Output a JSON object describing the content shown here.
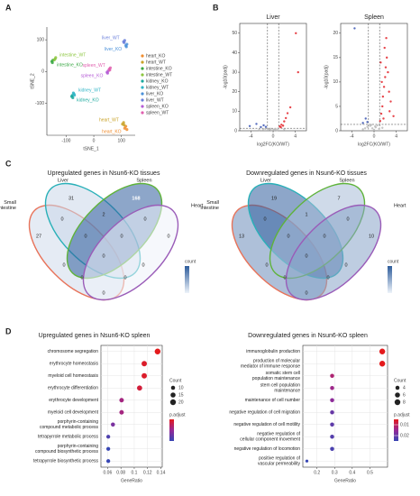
{
  "panel_labels": [
    "A",
    "B",
    "C",
    "D"
  ],
  "chart_data": [
    {
      "type": "scatter",
      "xlabel": "tSNE_1",
      "ylabel": "tSNE_2",
      "xlim": [
        -170,
        150
      ],
      "ylim": [
        -200,
        140
      ],
      "xticks": [
        -100,
        0,
        100
      ],
      "yticks": [
        -100,
        0,
        100
      ],
      "legend": "right",
      "series": [
        {
          "name": "heart_KO",
          "color": "#f08c2e",
          "x": [
            112,
            116,
            120
          ],
          "y": [
            -178,
            -172,
            -182
          ]
        },
        {
          "name": "heart_WT",
          "color": "#c9a227",
          "x": [
            104,
            108,
            110
          ],
          "y": [
            -165,
            -160,
            -168
          ]
        },
        {
          "name": "intestine_KO",
          "color": "#3aa845",
          "x": [
            -152,
            -148,
            -150
          ],
          "y": [
            32,
            36,
            28
          ]
        },
        {
          "name": "intestine_WT",
          "color": "#8cc63f",
          "x": [
            -140,
            -138,
            -143
          ],
          "y": [
            40,
            44,
            37
          ]
        },
        {
          "name": "kidney_KO",
          "color": "#19a99d",
          "x": [
            -80,
            -76,
            -78
          ],
          "y": [
            -78,
            -82,
            -75
          ]
        },
        {
          "name": "kidney_WT",
          "color": "#2fb5c6",
          "x": [
            -72,
            -70,
            -74
          ],
          "y": [
            -70,
            -74,
            -67
          ]
        },
        {
          "name": "liver_KO",
          "color": "#4a90d9",
          "x": [
            116,
            120,
            118
          ],
          "y": [
            82,
            86,
            78
          ]
        },
        {
          "name": "liver_WT",
          "color": "#6a7fdb",
          "x": [
            108,
            112,
            110
          ],
          "y": [
            94,
            98,
            91
          ]
        },
        {
          "name": "spleen_KO",
          "color": "#b55cd6",
          "x": [
            48,
            52,
            50
          ],
          "y": [
            -2,
            2,
            -5
          ]
        },
        {
          "name": "spleen_WT",
          "color": "#e05fae",
          "x": [
            56,
            60,
            58
          ],
          "y": [
            8,
            12,
            5
          ]
        }
      ]
    },
    {
      "type": "scatter",
      "title": "Liver",
      "xlabel": "log2FC(KO/WT)",
      "ylabel": "-log10(padj)",
      "xlim": [
        -6,
        6
      ],
      "ylim": [
        0,
        55
      ],
      "xticks": [
        -4,
        0,
        4
      ],
      "yticks": [
        0,
        10,
        20,
        30,
        40,
        50
      ],
      "threshold_x": [
        -1,
        1
      ],
      "threshold_y": 1.3,
      "series": [
        {
          "color": "#bbbbbb",
          "x": [
            -2.5,
            -1.8,
            -0.9,
            -0.5,
            -0.2,
            0.1,
            0.4,
            0.7,
            0.9,
            -0.6,
            0.3,
            2.0,
            -1.4
          ],
          "y": [
            0.4,
            0.8,
            0.5,
            1.0,
            0.2,
            0.6,
            0.9,
            0.3,
            1.1,
            0.7,
            0.4,
            0.8,
            1.0
          ]
        },
        {
          "color": "#e3242b",
          "x": [
            1.2,
            1.5,
            1.8,
            2.0,
            2.3,
            2.6,
            3.1,
            1.4,
            4.5,
            4.1
          ],
          "y": [
            2.2,
            3.1,
            2.6,
            4.8,
            6.5,
            9.0,
            12.0,
            1.8,
            30,
            50
          ]
        },
        {
          "color": "#3a55b4",
          "x": [
            -1.3,
            -1.7,
            -2.2,
            -3.0,
            -4.2
          ],
          "y": [
            2.0,
            2.8,
            1.9,
            3.5,
            2.4
          ]
        }
      ]
    },
    {
      "type": "scatter",
      "title": "Spleen",
      "xlabel": "log2FC(KO/WT)",
      "ylabel": "-log10(padj)",
      "xlim": [
        -6,
        6
      ],
      "ylim": [
        0,
        22
      ],
      "xticks": [
        -4,
        0,
        4
      ],
      "yticks": [
        0,
        5,
        10,
        15,
        20
      ],
      "threshold_x": [
        -1,
        1
      ],
      "threshold_y": 1.3,
      "series": [
        {
          "color": "#bbbbbb",
          "x": [
            -2,
            -1.2,
            -0.7,
            -0.3,
            0,
            0.3,
            0.6,
            0.9,
            -0.5,
            0.2,
            1.5,
            -1.6
          ],
          "y": [
            0.3,
            0.8,
            1.0,
            0.5,
            0.2,
            0.7,
            1.1,
            0.4,
            1.2,
            0.9,
            0.6,
            0.5
          ]
        },
        {
          "color": "#e3242b",
          "x": [
            1.1,
            1.3,
            1.5,
            1.6,
            1.8,
            2.0,
            2.1,
            2.3,
            2.5,
            2.7,
            3.0,
            1.4,
            1.9,
            2.2,
            2.8,
            3.5,
            1.2,
            1.7
          ],
          "y": [
            2,
            3.5,
            5,
            7,
            9,
            11,
            13,
            15,
            12,
            8,
            6,
            10,
            17,
            19,
            4,
            3,
            14,
            2.5
          ]
        },
        {
          "color": "#3a55b4",
          "x": [
            -1.2,
            -1.5,
            -2.0,
            -3.5
          ],
          "y": [
            1.8,
            2.5,
            1.6,
            21
          ]
        }
      ]
    },
    {
      "type": "venn",
      "title": "Upregulated genes in Nsun6-KO tissues",
      "colorbar_title": "count",
      "sets": [
        {
          "name": "Small\nintestine",
          "color": "#e8735a"
        },
        {
          "name": "Liver",
          "color": "#29b0b8"
        },
        {
          "name": "Spleen",
          "color": "#5fb33a"
        },
        {
          "name": "Heart",
          "color": "#9a5cb8"
        }
      ],
      "values": [
        27,
        31,
        168,
        0,
        0,
        2,
        0,
        0,
        0,
        0,
        0,
        0,
        0,
        0,
        0
      ]
    },
    {
      "type": "venn",
      "title": "Downregulated genes in Nsun6-KO tissues",
      "colorbar_title": "count",
      "sets": [
        {
          "name": "Small\nintestine",
          "color": "#e8735a"
        },
        {
          "name": "Liver",
          "color": "#29b0b8"
        },
        {
          "name": "Spleen",
          "color": "#5fb33a"
        },
        {
          "name": "Heart",
          "color": "#9a5cb8"
        }
      ],
      "values": [
        13,
        19,
        7,
        10,
        0,
        1,
        0,
        0,
        0,
        0,
        0,
        0,
        0,
        0,
        0
      ]
    },
    {
      "type": "dot",
      "title": "Upregulated genes in Nsun6-KO spleen",
      "xlabel": "GeneRatio",
      "xlim": [
        0.05,
        0.142
      ],
      "xticks": [
        0.06,
        0.08,
        0.1,
        0.12,
        0.14
      ],
      "categories": [
        "chromosome segregation",
        "erythrocyte homeostasis",
        "myeloid cell homeostasis",
        "erythrocyte differentiation",
        "erythrocyte development",
        "myeloid cell development",
        "porphyrin-containing\ncompound metabolic process",
        "tetrapyrrole metabolic process",
        "porphyrin-containing\ncompound biosynthetic process",
        "tetrapyrrole biosynthetic process"
      ],
      "values": [
        0.135,
        0.115,
        0.115,
        0.108,
        0.081,
        0.081,
        0.068,
        0.061,
        0.061,
        0.061
      ],
      "sizes": [
        20,
        17,
        17,
        16,
        12,
        12,
        10,
        9,
        9,
        9
      ],
      "padj": [
        5e-05,
        6e-05,
        6e-05,
        7e-05,
        0.00012,
        0.00012,
        0.00016,
        0.0002,
        0.00022,
        0.00022
      ],
      "clim": [
        5e-05,
        0.00022
      ],
      "size_legend_title": "Count",
      "size_legend": [
        10,
        15,
        20
      ],
      "color_legend_title": "p.adjust"
    },
    {
      "type": "dot",
      "title": "Downregulated genes in Nsun6-KO spleen",
      "xlabel": "GeneRatio",
      "xlim": [
        0.12,
        0.6
      ],
      "xticks": [
        0.2,
        0.3,
        0.4,
        0.5
      ],
      "categories": [
        "immunoglobulin production",
        "production of molecular\nmediator of immune response",
        "somatic stem cell\npopulation maintenance",
        "stem cell population\nmaintenance",
        "maintenance of cell number",
        "negative regulation of cell migration",
        "negative regulation of cell motility",
        "negative regulation of\ncellular component movement",
        "negative regulation of locomotion",
        "positive regulation of\nvascular permeability"
      ],
      "values": [
        0.57,
        0.57,
        0.286,
        0.286,
        0.286,
        0.286,
        0.286,
        0.286,
        0.286,
        0.143
      ],
      "sizes": [
        8,
        8,
        4,
        4,
        4,
        4,
        4,
        4,
        4,
        2
      ],
      "padj": [
        0.005,
        0.005,
        0.012,
        0.014,
        0.016,
        0.02,
        0.021,
        0.022,
        0.023,
        0.025
      ],
      "clim": [
        0.005,
        0.025
      ],
      "size_legend_title": "Count",
      "size_legend": [
        4,
        6,
        8
      ],
      "color_legend_title": "p.adjust",
      "color_ticks": [
        0.01,
        0.02
      ]
    }
  ]
}
